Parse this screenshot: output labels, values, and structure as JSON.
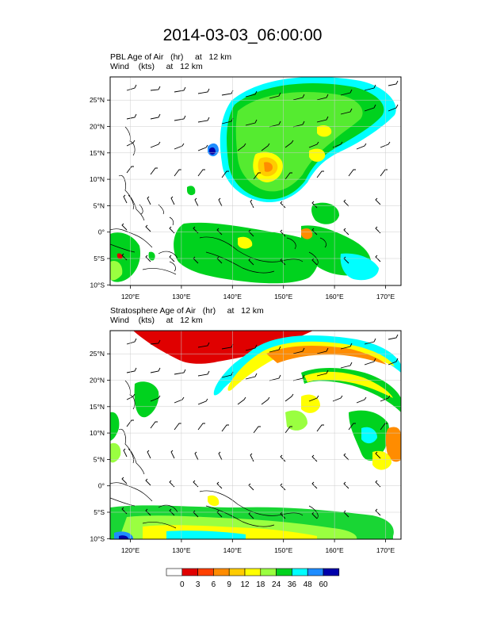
{
  "title": "2014-03-03_06:00:00",
  "panels": [
    {
      "line1": "PBL Age of Air   (hr)     at   12 km",
      "line2": "Wind    (kts)     at   12 km"
    },
    {
      "line1": "Stratosphere Age of Air   (hr)     at   12 km",
      "line2": "Wind    (kts)     at   12 km"
    }
  ],
  "lon_ticks": [
    "120°E",
    "130°E",
    "140°E",
    "150°E",
    "160°E",
    "170°E"
  ],
  "lat_ticks": [
    "25°N",
    "20°N",
    "15°N",
    "10°N",
    "5°N",
    "0°",
    "5°S",
    "10°S"
  ],
  "map": {
    "lon_range": [
      116,
      173
    ],
    "lat_range": [
      -10,
      29.5
    ],
    "lon_values": [
      120,
      130,
      140,
      150,
      160,
      170
    ],
    "lat_values": [
      25,
      20,
      15,
      10,
      5,
      0,
      -5,
      -10
    ]
  },
  "colorbar": {
    "labels": [
      "0",
      "3",
      "6",
      "9",
      "12",
      "18",
      "24",
      "36",
      "48",
      "60"
    ],
    "colors": [
      "#ffffff",
      "#e00000",
      "#ff4000",
      "#ff8c00",
      "#ffcc00",
      "#ffff00",
      "#9aff40",
      "#00d21e",
      "#00ffff",
      "#1e8cff",
      "#0000aa"
    ]
  }
}
